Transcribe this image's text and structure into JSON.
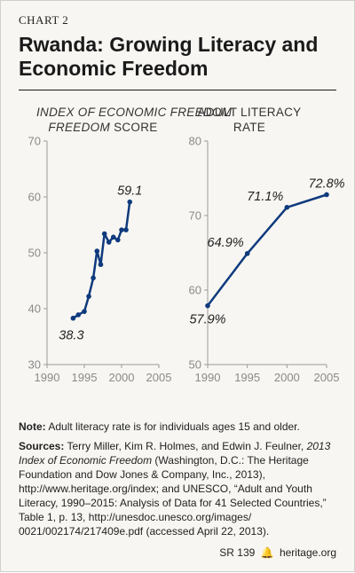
{
  "header": {
    "chart_number": "CHART 2",
    "title": "Rwanda: Growing Literacy and Economic Freedom"
  },
  "chart_data": [
    {
      "type": "line",
      "title_italic": "INDEX OF ECONOMIC FREEDOM",
      "title_rest": "SCORE",
      "x": [
        1993.5,
        1994.2,
        1995,
        1995.6,
        1996.2,
        1996.7,
        1997.2,
        1997.7,
        1998.3,
        1998.9,
        1999.5,
        2000,
        2000.6,
        2001.1
      ],
      "y": [
        38.3,
        38.9,
        39.5,
        42.2,
        45.5,
        50.3,
        47.9,
        53.4,
        51.9,
        52.8,
        52.3,
        54.1,
        54.1,
        59.1
      ],
      "labels": [
        {
          "index": 0,
          "text": "38.3",
          "position": "below-left"
        },
        {
          "index": 13,
          "text": "59.1",
          "position": "above"
        }
      ],
      "xlim": [
        1990,
        2005
      ],
      "ylim": [
        30,
        70
      ],
      "xticks": [
        "1990",
        "1995",
        "2000",
        "2005"
      ],
      "yticks": [
        "30",
        "40",
        "50",
        "60",
        "70"
      ],
      "grid": false,
      "color": "#0f3a7d"
    },
    {
      "type": "line",
      "title_line1": "ADULT LITERACY",
      "title_line2": "RATE",
      "x": [
        1990,
        1995,
        2000,
        2005
      ],
      "y": [
        57.9,
        64.9,
        71.1,
        72.8
      ],
      "labels": [
        {
          "index": 0,
          "text": "57.9%",
          "position": "below"
        },
        {
          "index": 1,
          "text": "64.9%",
          "position": "above-left"
        },
        {
          "index": 2,
          "text": "71.1%",
          "position": "above-left"
        },
        {
          "index": 3,
          "text": "72.8%",
          "position": "above"
        }
      ],
      "xlim": [
        1990,
        2005
      ],
      "ylim": [
        50,
        80
      ],
      "xticks": [
        "1990",
        "1995",
        "2000",
        "2005"
      ],
      "yticks": [
        "50",
        "60",
        "70",
        "80"
      ],
      "grid": false,
      "color": "#0f3a7d"
    }
  ],
  "note": {
    "label": "Note:",
    "text": "Adult literacy rate is for individuals ages 15 and older."
  },
  "sources": {
    "label": "Sources:",
    "part1": "Terry Miller, Kim R. Holmes, and Edwin J. Feulner,",
    "italic1": "2013 Index of Economic Freedom",
    "part2": "(Washington, D.C.: The Heritage Foundation and Dow Jones & Company, Inc., 2013), http://www.heritage.org/index; and UNESCO, “Adult and Youth Literacy, 1990–2015: Analysis of Data for 41 Selected Countries,” Table 1, p. 13, http://unesdoc.unesco.org/images/ 0021/002174/217409e.pdf (accessed April 22, 2013)."
  },
  "footer": {
    "report_id": "SR 139",
    "bell_icon": "🔔",
    "site": "heritage.org"
  }
}
